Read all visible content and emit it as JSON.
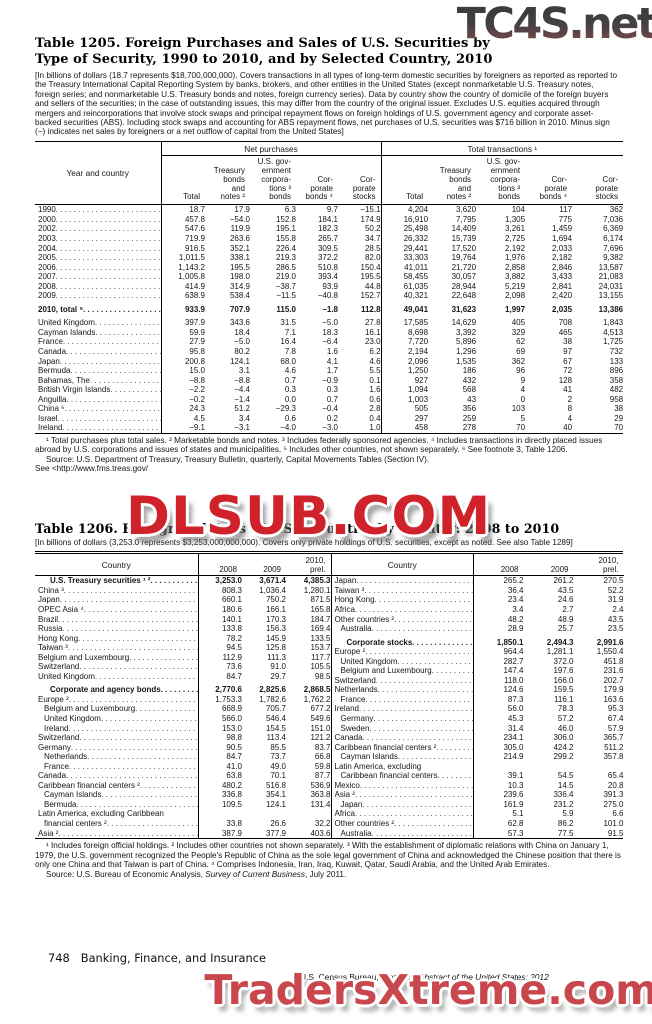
{
  "watermarks": {
    "top": "TC4S.net",
    "middle": "DLSUB.COM",
    "bottom": "TradersXtreme.com",
    "colors": {
      "top_gray": "#3d3d3f",
      "top_maroon": "#7e5252",
      "middle_red": "#d0222b",
      "bottom_red": "#c8474d"
    }
  },
  "table1205": {
    "title_line1": "Table 1205. Foreign Purchases and Sales of U.S. Securities by",
    "title_line2": "Type of Security, 1990 to 2010, and by Selected Country, 2010",
    "intro": "[In billions of dollars (18.7 represents $18,700,000,000). Covers transactions in all types of long-term domestic securities by foreigners as reported as reported to the Treasury International Capital Reporting System by banks, brokers, and other entities in the United States (except nonmarketable U.S. Treasury notes, foreign series; and nonmarketable U.S. Treasury bonds and notes, foreign currency series). Data by country show the country of domicile of the foreign buyers and sellers of the securities; in the case of outstanding issues, this may differ from the country of the original issuer. Excludes U.S. equities acquired through mergers and reincorporations that involve stock swaps and principal repayment flows on foreign holdings of U.S. government agency and corporate asset-backed securities (ABS). Including stock swaps and  accounting for ABS repayment flows, net purchases of U.S. securities was $716 billion in 2010. Minus sign (−) indicates net sales by foreigners or a net outflow of capital from the United States]",
    "col_label": "Year and country",
    "group1": "Net purchases",
    "group2": "Total transactions ¹",
    "subcols": [
      "Total",
      "Treasury\nbonds\nand\nnotes ²",
      "U.S. gov-\nernment\ncorpora-\ntions ³\nbonds",
      "Cor-\nporate\nbonds ⁴",
      "Cor-\nporate\nstocks"
    ],
    "rows": [
      {
        "label": "1990",
        "values": [
          "18.7",
          "17.9",
          "6.3",
          "9.7",
          "−15.1",
          "4,204",
          "3,620",
          "104",
          "117",
          "362"
        ]
      },
      {
        "label": "2000",
        "values": [
          "457.8",
          "−54.0",
          "152.8",
          "184.1",
          "174.9",
          "16,910",
          "7,795",
          "1,305",
          "775",
          "7,036"
        ]
      },
      {
        "label": "2002",
        "values": [
          "547.6",
          "119.9",
          "195.1",
          "182.3",
          "50.2",
          "25,498",
          "14,409",
          "3,261",
          "1,459",
          "6,369"
        ]
      },
      {
        "label": "2003",
        "values": [
          "719.9",
          "263.6",
          "155.8",
          "265.7",
          "34.7",
          "26,332",
          "15,739",
          "2,725",
          "1,694",
          "6,174"
        ]
      },
      {
        "label": "2004",
        "values": [
          "916.5",
          "352.1",
          "226.4",
          "309.5",
          "28.5",
          "29,441",
          "17,520",
          "2,192",
          "2,033",
          "7,696"
        ]
      },
      {
        "label": "2005",
        "values": [
          "1,011.5",
          "338.1",
          "219.3",
          "372.2",
          "82.0",
          "33,303",
          "19,764",
          "1,976",
          "2,182",
          "9,382"
        ]
      },
      {
        "label": "2006",
        "values": [
          "1,143.2",
          "195.5",
          "286.5",
          "510.8",
          "150.4",
          "41,011",
          "21,720",
          "2,858",
          "2,846",
          "13,587"
        ]
      },
      {
        "label": "2007",
        "values": [
          "1,005.8",
          "198.0",
          "219.0",
          "393.4",
          "195.5",
          "58,455",
          "30,057",
          "3,882",
          "3,433",
          "21,083"
        ]
      },
      {
        "label": "2008",
        "values": [
          "414.9",
          "314.9",
          "−38.7",
          "93.9",
          "44.8",
          "61,035",
          "28,944",
          "5,219",
          "2,841",
          "24,031"
        ]
      },
      {
        "label": "2009",
        "values": [
          "638.9",
          "538.4",
          "−11.5",
          "−40.8",
          "152.7",
          "40,321",
          "22,648",
          "2,098",
          "2,420",
          "13,155"
        ]
      },
      {
        "label": "2010, total ⁵",
        "b": true,
        "gap": true,
        "values": [
          "933.9",
          "707.9",
          "115.0",
          "−1.8",
          "112.8",
          "49,041",
          "31,623",
          "1,997",
          "2,035",
          "13,386"
        ]
      },
      {
        "label": "United Kingdom",
        "gap": true,
        "values": [
          "397.9",
          "343.6",
          "31.5",
          "−5.0",
          "27.8",
          "17,585",
          "14,629",
          "405",
          "708",
          "1,843"
        ]
      },
      {
        "label": "Cayman Islands",
        "values": [
          "59.9",
          "18.4",
          "7.1",
          "18.3",
          "16.1",
          "8,698",
          "3,392",
          "329",
          "465",
          "4,513"
        ]
      },
      {
        "label": "France",
        "values": [
          "27.9",
          "−5.0",
          "16.4",
          "−6.4",
          "23.0",
          "7,720",
          "5,896",
          "62",
          "38",
          "1,725"
        ]
      },
      {
        "label": "Canada",
        "values": [
          "95.8",
          "80.2",
          "7.8",
          "1.6",
          "6.2",
          "2,194",
          "1,296",
          "69",
          "97",
          "732"
        ]
      },
      {
        "label": "Japan",
        "values": [
          "200.8",
          "124.1",
          "68.0",
          "4.1",
          "4.6",
          "2,096",
          "1,535",
          "362",
          "67",
          "133"
        ]
      },
      {
        "label": "Bermuda",
        "values": [
          "15.0",
          "3.1",
          "4.6",
          "1.7",
          "5.5",
          "1,250",
          "186",
          "96",
          "72",
          "896"
        ]
      },
      {
        "label": "Bahamas, The",
        "values": [
          "−8.8",
          "−8.8",
          "0.7",
          "−0.9",
          "0.1",
          "927",
          "432",
          "9",
          "128",
          "358"
        ]
      },
      {
        "label": "British Virgin Islands",
        "values": [
          "−2.2",
          "−4.4",
          "0.3",
          "0.3",
          "1.6",
          "1,094",
          "568",
          "4",
          "41",
          "482"
        ]
      },
      {
        "label": "Anguilla",
        "values": [
          "−0.2",
          "−1.4",
          "0.0",
          "0.7",
          "0.6",
          "1,003",
          "43",
          "0",
          "2",
          "958"
        ]
      },
      {
        "label": "China ⁶",
        "values": [
          "24.3",
          "51.2",
          "−29.3",
          "−0.4",
          "2.8",
          "505",
          "356",
          "103",
          "8",
          "38"
        ]
      },
      {
        "label": "Israel",
        "values": [
          "4.5",
          "3.4",
          "0.6",
          "0.2",
          "0.4",
          "297",
          "259",
          "5",
          "4",
          "29"
        ]
      },
      {
        "label": "Ireland",
        "values": [
          "−9.1",
          "−3.1",
          "−4.0",
          "−3.0",
          "1.0",
          "458",
          "278",
          "70",
          "40",
          "70"
        ]
      }
    ],
    "footnote": "¹ Total purchases plus total sales. ² Marketable bonds and notes. ³ Includes federally sponsored agencies. ⁴ Includes transactions in directly placed issues abroad by U.S. corporations and issues of states and municipalities. ⁵ Includes other countries, not shown separately. ⁶ See footnote 3, Table 1206.",
    "source": "Source: U.S. Department of Treasury, Treasury Bulletin, quarterly, Capital Movements Tables (Section IV).",
    "source2": "See <http://www.fms.treas.gov/"
  },
  "table1206": {
    "title": "Table 1206. Foreign Holdings of U.S. Securities by Country: 2008 to 2010",
    "intro": "[In billions of dollars (3,253.0 represents $3,253,000,000,000). Covers only private holdings of U.S. securities, except as noted. See also Table 1289]",
    "col_country": "Country",
    "years": [
      "2008",
      "2009",
      "2010,\nprel."
    ],
    "left_rows": [
      {
        "label": "U.S. Treasury securities ¹ ²",
        "b": true,
        "ind": 2,
        "values": [
          "3,253.0",
          "3,671.4",
          "4,385.3"
        ]
      },
      {
        "label": "China ³",
        "values": [
          "808.3",
          "1,036.4",
          "1,280.1"
        ]
      },
      {
        "label": "Japan",
        "values": [
          "660.1",
          "750.2",
          "871.5"
        ]
      },
      {
        "label": "OPEC Asia ⁴",
        "values": [
          "180.6",
          "166.1",
          "165.8"
        ]
      },
      {
        "label": "Brazil",
        "values": [
          "140.1",
          "170.3",
          "184.7"
        ]
      },
      {
        "label": "Russia",
        "values": [
          "133.8",
          "156.3",
          "169.4"
        ]
      },
      {
        "label": "Hong Kong",
        "values": [
          "78.2",
          "145.9",
          "133.5"
        ]
      },
      {
        "label": "Taiwan ³",
        "values": [
          "94.5",
          "125.8",
          "153.7"
        ]
      },
      {
        "label": "Belgium and Luxembourg",
        "values": [
          "112.9",
          "111.3",
          "117.7"
        ]
      },
      {
        "label": "Switzerland",
        "values": [
          "73.6",
          "91.0",
          "105.5"
        ]
      },
      {
        "label": "United Kingdom",
        "values": [
          "84.7",
          "29.7",
          "98.5"
        ]
      },
      {
        "label": "Corporate and agency bonds",
        "b": true,
        "ind": 2,
        "gap": true,
        "values": [
          "2,770.6",
          "2,825.6",
          "2,868.5"
        ]
      },
      {
        "label": "Europe ²",
        "values": [
          "1,753.3",
          "1,782.6",
          "1,762.2"
        ]
      },
      {
        "label": "Belgium and Luxembourg",
        "ind": 1,
        "values": [
          "668.9",
          "705.7",
          "677.2"
        ]
      },
      {
        "label": "United Kingdom",
        "ind": 1,
        "values": [
          "566.0",
          "546.4",
          "549.6"
        ]
      },
      {
        "label": "Ireland",
        "ind": 1,
        "values": [
          "153.0",
          "154.5",
          "151.0"
        ]
      },
      {
        "label": "Switzerland",
        "values": [
          "98.8",
          "113.4",
          "121.2"
        ]
      },
      {
        "label": "Germany",
        "values": [
          "90.5",
          "85.5",
          "83.7"
        ]
      },
      {
        "label": "Netherlands",
        "ind": 1,
        "values": [
          "84.7",
          "73.7",
          "66.8"
        ]
      },
      {
        "label": "France",
        "ind": 1,
        "values": [
          "41.0",
          "49.0",
          "59.8"
        ]
      },
      {
        "label": "Canada",
        "values": [
          "63.8",
          "70.1",
          "87.7"
        ]
      },
      {
        "label": "Caribbean financial centers ²",
        "values": [
          "480.2",
          "516.8",
          "536.9"
        ]
      },
      {
        "label": "Cayman Islands",
        "ind": 1,
        "values": [
          "336.8",
          "354.1",
          "363.8"
        ]
      },
      {
        "label": "Bermuda",
        "ind": 1,
        "values": [
          "109.5",
          "124.1",
          "131.4"
        ]
      },
      {
        "label": "Latin America, excluding Caribbean",
        "noDots": true,
        "values": []
      },
      {
        "label": "financial centers ²",
        "ind": 1,
        "values": [
          "33.8",
          "26.6",
          "32.2"
        ]
      },
      {
        "label": "Asia ²",
        "values": [
          "387.9",
          "377.9",
          "403.6"
        ]
      }
    ],
    "right_rows": [
      {
        "label": "Japan",
        "values": [
          "265.2",
          "261.2",
          "270.5"
        ]
      },
      {
        "label": "Taiwan ³",
        "values": [
          "36.4",
          "43.5",
          "52.2"
        ]
      },
      {
        "label": "Hong Kong",
        "values": [
          "23.4",
          "24.6",
          "31.9"
        ]
      },
      {
        "label": "Africa",
        "values": [
          "3.4",
          "2.7",
          "2.4"
        ]
      },
      {
        "label": "Other countries ²",
        "values": [
          "48.2",
          "48.9",
          "43.5"
        ]
      },
      {
        "label": "Australia",
        "ind": 1,
        "values": [
          "28.9",
          "25.7",
          "23.5"
        ]
      },
      {
        "label": "Corporate stocks",
        "b": true,
        "ind": 2,
        "gap": true,
        "values": [
          "1,850.1",
          "2,494.3",
          "2,991.6"
        ]
      },
      {
        "label": "Europe ²",
        "values": [
          "964.4",
          "1,281.1",
          "1,550.4"
        ]
      },
      {
        "label": "United Kingdom",
        "ind": 1,
        "values": [
          "282.7",
          "372.0",
          "451.8"
        ]
      },
      {
        "label": "Belgium and Luxembourg",
        "ind": 1,
        "values": [
          "147.4",
          "197.6",
          "231.6"
        ]
      },
      {
        "label": "Switzerland",
        "values": [
          "118.0",
          "166.0",
          "202.7"
        ]
      },
      {
        "label": "Netherlands",
        "values": [
          "124.6",
          "159.5",
          "179.9"
        ]
      },
      {
        "label": "France",
        "ind": 1,
        "values": [
          "87.3",
          "116.1",
          "163.6"
        ]
      },
      {
        "label": "Ireland",
        "values": [
          "56.0",
          "78.3",
          "95.3"
        ]
      },
      {
        "label": "Germany",
        "ind": 1,
        "values": [
          "45.3",
          "57.2",
          "67.4"
        ]
      },
      {
        "label": "Sweden",
        "ind": 1,
        "values": [
          "31.4",
          "46.0",
          "57.9"
        ]
      },
      {
        "label": "Canada",
        "values": [
          "234.1",
          "306.0",
          "365.7"
        ]
      },
      {
        "label": "Caribbean financial centers ²",
        "values": [
          "305.0",
          "424.2",
          "511.2"
        ]
      },
      {
        "label": "Cayman Islands",
        "ind": 1,
        "values": [
          "214.9",
          "299.2",
          "357.8"
        ]
      },
      {
        "label": "Latin America, excluding",
        "noDots": true,
        "values": []
      },
      {
        "label": "Caribbean financial centers",
        "ind": 1,
        "values": [
          "39.1",
          "54.5",
          "65.4"
        ]
      },
      {
        "label": "Mexico",
        "values": [
          "10.3",
          "14.5",
          "20.8"
        ]
      },
      {
        "label": "Asia ²",
        "values": [
          "239.6",
          "336.4",
          "391.3"
        ]
      },
      {
        "label": "Japan",
        "ind": 1,
        "values": [
          "161.9",
          "231.2",
          "275.0"
        ]
      },
      {
        "label": "Africa",
        "values": [
          "5.1",
          "5.9",
          "6.6"
        ]
      },
      {
        "label": "Other countries ²",
        "values": [
          "62.8",
          "86.2",
          "101.0"
        ]
      },
      {
        "label": "Australia",
        "ind": 1,
        "values": [
          "57.3",
          "77.5",
          "91.5"
        ]
      }
    ],
    "footnote": "¹ Includes foreign official holdings. ² Includes other countries not shown separately. ³ With the establishment of diplomatic relations with China on January 1, 1979, the U.S. government recognized the People's Republic of China as the sole legal government of China and acknowledged the Chinese position that there is only one China and that Taiwan is part of China. ⁴ Comprises Indonesia, Iran, Iraq, Kuwait, Qatar, Saudi Arabia, and the United Arab Emirates.",
    "source_prefix": "Source: U.S. Bureau of Economic Analysis, ",
    "source_italic": "Survey of Current Business",
    "source_suffix": ", July 2011."
  },
  "footer": {
    "page_number": "748",
    "section": "Banking, Finance, and Insurance",
    "census_prefix": "U.S. Census Bureau, ",
    "census_italic": "Statistical Abstract of the United States: 2012"
  }
}
